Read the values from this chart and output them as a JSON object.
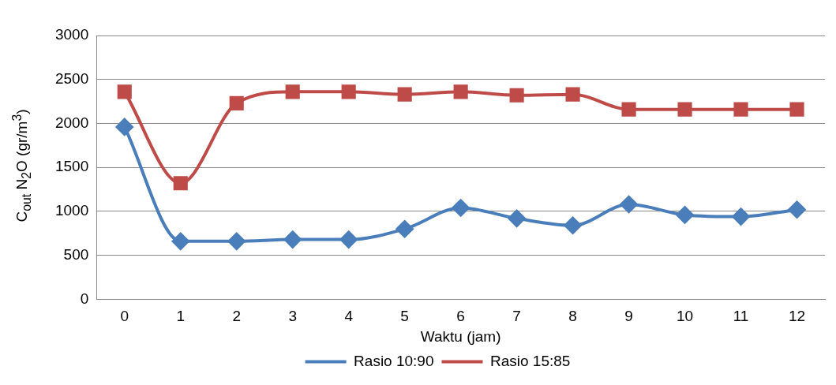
{
  "chart_data": {
    "type": "line",
    "xlabel": "Waktu (jam)",
    "ylabel": "C$_{out}$ N$_{2}$O (gr/m$^{3}$)",
    "x": [
      0,
      1,
      2,
      3,
      4,
      5,
      6,
      7,
      8,
      9,
      10,
      11,
      12
    ],
    "xlim": [
      -0.5,
      12.5
    ],
    "xticks": [
      0,
      1,
      2,
      3,
      4,
      5,
      6,
      7,
      8,
      9,
      10,
      11,
      12
    ],
    "series": [
      {
        "name": "Rasio 10:90",
        "color": "#4a7ebb",
        "marker": "diamond",
        "values": [
          1960,
          660,
          660,
          680,
          680,
          800,
          1040,
          920,
          840,
          1080,
          960,
          940,
          1020
        ]
      },
      {
        "name": "Rasio 15:85",
        "color": "#be4b48",
        "marker": "square",
        "values": [
          2360,
          1320,
          2230,
          2360,
          2360,
          2330,
          2360,
          2320,
          2330,
          2160,
          2160,
          2160,
          2160
        ]
      }
    ],
    "ylim": [
      0,
      3000
    ],
    "yticks": [
      0,
      500,
      1000,
      1500,
      2000,
      2500,
      3000
    ],
    "grid": "y",
    "legend": "bottom"
  }
}
